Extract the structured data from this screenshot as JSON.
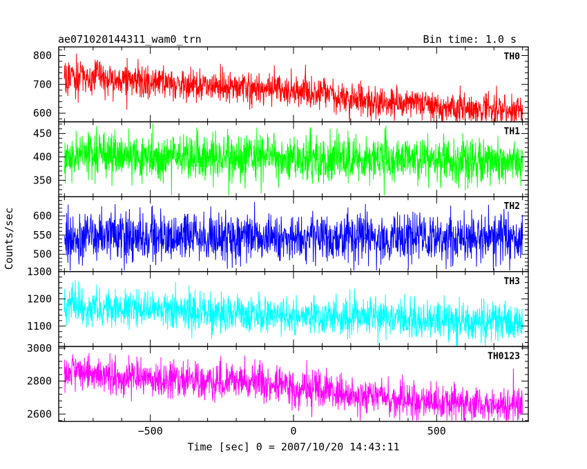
{
  "chart_data": {
    "type": "line",
    "title": "ae071020144311_wam0_trn",
    "bin_time_label": "Bin time: 1.0 s",
    "xlabel": "Time [sec] 0 = 2007/10/20 14:43:11",
    "ylabel": "Counts/sec",
    "xlim": [
      -820,
      820
    ],
    "xticks": [
      -500,
      0,
      500
    ],
    "xticklabels": [
      "−500",
      "0",
      "500"
    ],
    "grid": false,
    "legend": "none",
    "panels": [
      {
        "name": "TH0",
        "color": "#ff0000",
        "ylim": [
          570,
          830
        ],
        "yticks": [
          600,
          700,
          800
        ],
        "yticklabels": [
          "600",
          "700",
          "800"
        ],
        "trend_x": [
          -800,
          140,
          160,
          800
        ],
        "trend_y": [
          730,
          668,
          648,
          605
        ],
        "noise_sd": 28,
        "series_min": 570,
        "series_max": 830
      },
      {
        "name": "TH1",
        "color": "#00ff00",
        "ylim": [
          315,
          475
        ],
        "yticks": [
          350,
          400,
          450
        ],
        "yticklabels": [
          "350",
          "400",
          "450"
        ],
        "trend_x": [
          -800,
          800
        ],
        "trend_y": [
          405,
          390
        ],
        "noise_sd": 25,
        "series_min": 318,
        "series_max": 472
      },
      {
        "name": "TH2",
        "color": "#0000ff",
        "ylim": [
          455,
          650
        ],
        "yticks": [
          500,
          550,
          600
        ],
        "yticklabels": [
          "500",
          "550",
          "600"
        ],
        "trend_x": [
          -800,
          800
        ],
        "trend_y": [
          545,
          545
        ],
        "noise_sd": 32,
        "series_min": 458,
        "series_max": 648
      },
      {
        "name": "TH3",
        "color": "#00ffff",
        "ylim": [
          1025,
          1300
        ],
        "yticks": [
          1100,
          1200,
          1300
        ],
        "yticklabels": [
          "1100",
          "1200",
          "1300"
        ],
        "trend_x": [
          -800,
          800
        ],
        "trend_y": [
          1170,
          1110
        ],
        "noise_sd": 35,
        "series_min": 1028,
        "series_max": 1300
      },
      {
        "name": "TH0123",
        "color": "#ff00ff",
        "ylim": [
          2555,
          3010
        ],
        "yticks": [
          2600,
          2800,
          3000
        ],
        "yticklabels": [
          "2600",
          "2800",
          "3000"
        ],
        "trend_x": [
          -800,
          140,
          160,
          800
        ],
        "trend_y": [
          2850,
          2760,
          2720,
          2640
        ],
        "noise_sd": 55,
        "series_min": 2560,
        "series_max": 3005
      }
    ]
  }
}
